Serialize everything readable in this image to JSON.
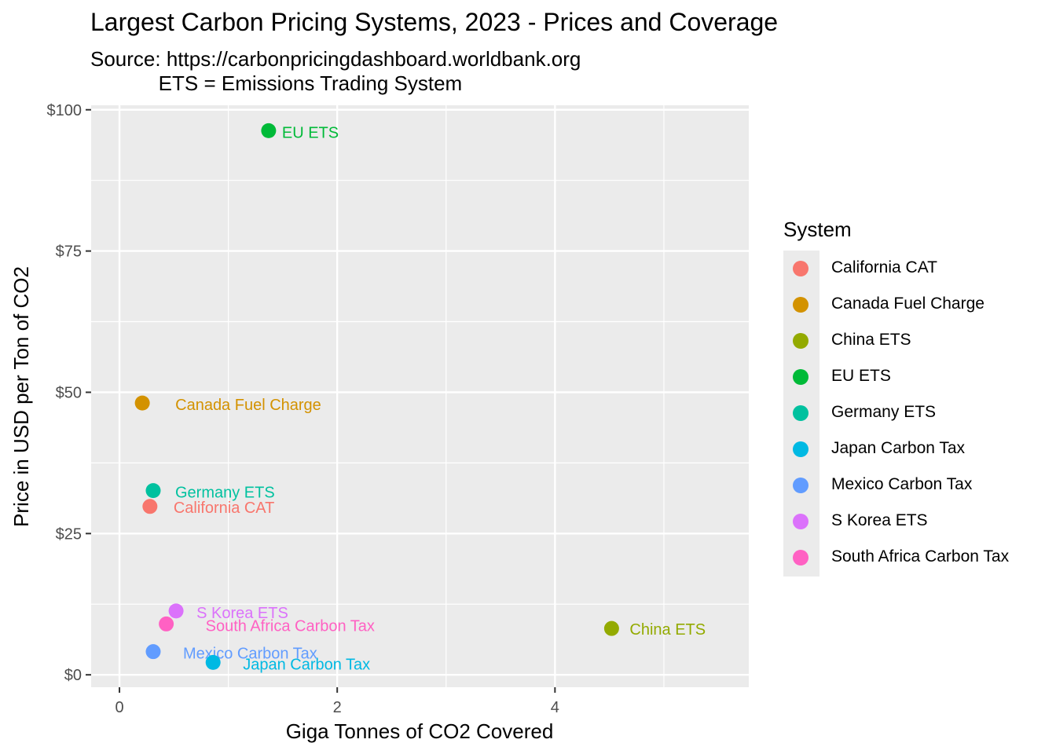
{
  "chart_data": {
    "type": "scatter",
    "title": "Largest Carbon Pricing Systems, 2023 - Prices and Coverage",
    "subtitle": "Source: https://carbonpricingdashboard.worldbank.org\n            ETS = Emissions Trading System",
    "xlabel": "Giga Tonnes of CO2 Covered",
    "ylabel": "Price in USD per Ton of CO2",
    "xlim": [
      -0.26,
      5.78
    ],
    "ylim": [
      -2.2,
      100.8
    ],
    "x_ticks": [
      0,
      2,
      4
    ],
    "x_tick_labels": [
      "0",
      "2",
      "4"
    ],
    "y_ticks": [
      0,
      25,
      50,
      75,
      100
    ],
    "y_tick_labels": [
      "$0",
      "$25",
      "$50",
      "$75",
      "$100"
    ],
    "grid": true,
    "legend": {
      "title": "System",
      "position": "right"
    },
    "series": [
      {
        "name": "California CAT",
        "x": 0.28,
        "y": 29.8,
        "color": "#F8766D"
      },
      {
        "name": "Canada Fuel Charge",
        "x": 0.21,
        "y": 48.1,
        "color": "#D39200"
      },
      {
        "name": "China ETS",
        "x": 4.52,
        "y": 8.2,
        "color": "#93AA00"
      },
      {
        "name": "EU ETS",
        "x": 1.37,
        "y": 96.3,
        "color": "#00BA38"
      },
      {
        "name": "Germany ETS",
        "x": 0.31,
        "y": 32.6,
        "color": "#00C19F"
      },
      {
        "name": "Japan Carbon Tax",
        "x": 0.86,
        "y": 2.2,
        "color": "#00B9E3"
      },
      {
        "name": "Mexico Carbon Tax",
        "x": 0.31,
        "y": 4.1,
        "color": "#619CFF"
      },
      {
        "name": "S Korea ETS",
        "x": 0.52,
        "y": 11.3,
        "color": "#DB72FB"
      },
      {
        "name": "South Africa Carbon Tax",
        "x": 0.43,
        "y": 9.0,
        "color": "#FF61C3"
      }
    ]
  }
}
